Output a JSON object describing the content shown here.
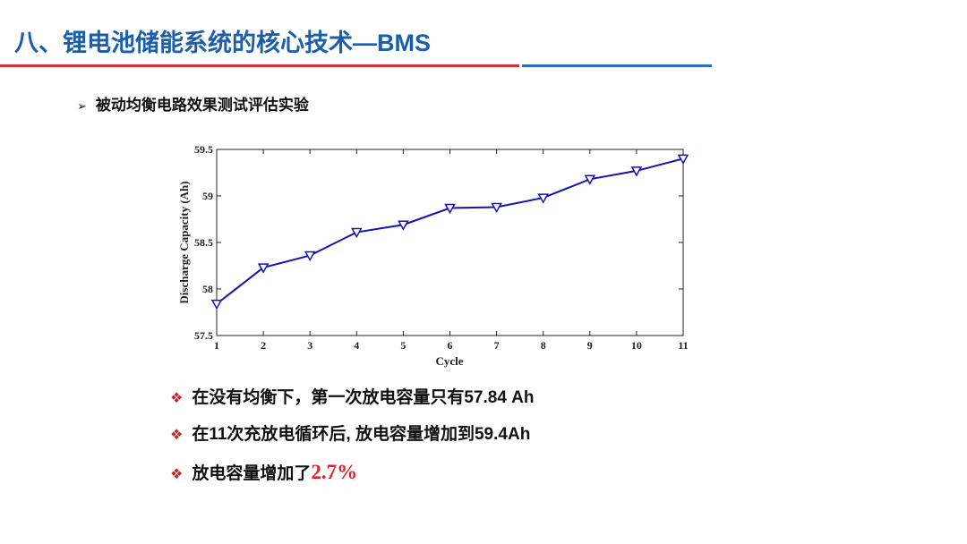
{
  "slide": {
    "title": "八、锂电池储能系统的核心技术—BMS",
    "subtitle": "被动均衡电路效果测试评估实验",
    "bullets": [
      {
        "text": "在没有均衡下，第一次放电容量只有57.84 Ah"
      },
      {
        "text": "在11次充放电循环后, 放电容量增加到59.4Ah"
      },
      {
        "text": "放电容量增加了",
        "highlight": "2.7%"
      }
    ]
  },
  "chart_data": {
    "type": "line",
    "x_label": "Cycle",
    "y_label": "Discharge Capacity (Ah)",
    "x": [
      1,
      2,
      3,
      4,
      5,
      6,
      7,
      8,
      9,
      10,
      11
    ],
    "series": [
      {
        "name": "Discharge Capacity",
        "color": "#1414b4",
        "values": [
          57.84,
          58.23,
          58.36,
          58.61,
          58.69,
          58.87,
          58.88,
          58.98,
          59.18,
          59.27,
          59.4
        ]
      }
    ],
    "xlim": [
      1,
      11
    ],
    "xticks": [
      1,
      2,
      3,
      4,
      5,
      6,
      7,
      8,
      9,
      10,
      11
    ],
    "ylim": [
      57.5,
      59.5
    ],
    "yticks": [
      57.5,
      58,
      58.5,
      59,
      59.5
    ],
    "grid": false
  }
}
